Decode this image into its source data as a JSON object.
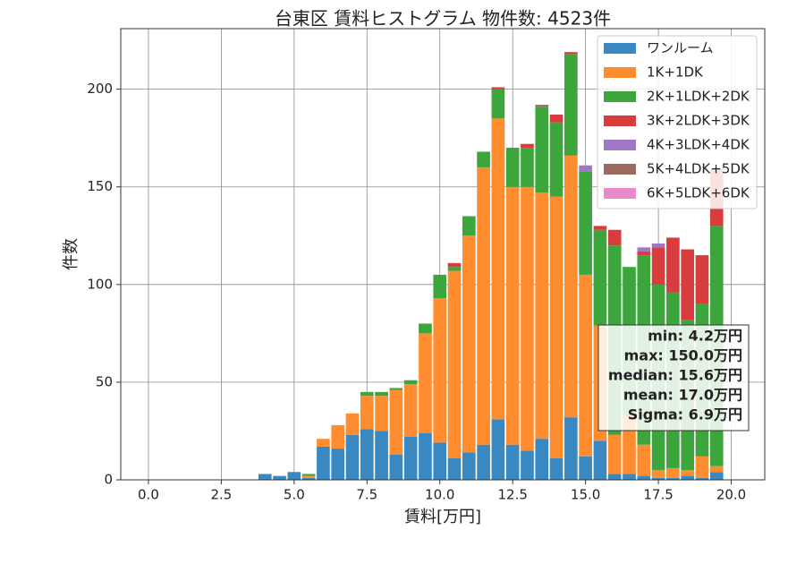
{
  "chart_data": {
    "type": "bar",
    "stacked": true,
    "title": "台東区 賃料ヒストグラム 物件数: 4523件",
    "xlabel": "賃料[万円]",
    "ylabel": "件数",
    "xlim": [
      -0.95,
      21.15
    ],
    "ylim": [
      0,
      231
    ],
    "grid": true,
    "bin_width": 0.5,
    "x": [
      3.5,
      4.0,
      4.5,
      5.0,
      5.5,
      6.0,
      6.5,
      7.0,
      7.5,
      8.0,
      8.5,
      9.0,
      9.5,
      10.0,
      10.5,
      11.0,
      11.5,
      12.0,
      12.5,
      13.0,
      13.5,
      14.0,
      14.5,
      15.0,
      15.5,
      16.0,
      16.5,
      17.0,
      17.5,
      18.0,
      18.5,
      19.0,
      19.5
    ],
    "x_ticks": [
      {
        "value": 0.0,
        "label": "0.0"
      },
      {
        "value": 2.5,
        "label": "2.5"
      },
      {
        "value": 5.0,
        "label": "5.0"
      },
      {
        "value": 7.5,
        "label": "7.5"
      },
      {
        "value": 10.0,
        "label": "10.0"
      },
      {
        "value": 12.5,
        "label": "12.5"
      },
      {
        "value": 15.0,
        "label": "15.0"
      },
      {
        "value": 17.5,
        "label": "17.5"
      },
      {
        "value": 20.0,
        "label": "20.0"
      }
    ],
    "y_ticks": [
      {
        "value": 0,
        "label": "0"
      },
      {
        "value": 50,
        "label": "50"
      },
      {
        "value": 100,
        "label": "100"
      },
      {
        "value": 150,
        "label": "150"
      },
      {
        "value": 200,
        "label": "200"
      }
    ],
    "series": [
      {
        "name": "ワンルーム",
        "color": "#3a88c1",
        "values": [
          0,
          3,
          2,
          4,
          1,
          17,
          16,
          23,
          26,
          25,
          13,
          22,
          24,
          19,
          11,
          14,
          18,
          31,
          18,
          15,
          21,
          11,
          32,
          12,
          20,
          3,
          3,
          2,
          1,
          1,
          2,
          1,
          4
        ]
      },
      {
        "name": "1K+1DK",
        "color": "#ff8c2e",
        "values": [
          0,
          0,
          0,
          0,
          1,
          4,
          12,
          11,
          17,
          18,
          33,
          27,
          51,
          74,
          96,
          111,
          142,
          154,
          132,
          135,
          126,
          134,
          134,
          93,
          59,
          20,
          30,
          16,
          4,
          5,
          3,
          11,
          3
        ]
      },
      {
        "name": "2K+1LDK+2DK",
        "color": "#3ca53c",
        "values": [
          0,
          0,
          0,
          0,
          1,
          0,
          0,
          0,
          2,
          2,
          1,
          2,
          5,
          12,
          2,
          10,
          8,
          15,
          20,
          20,
          44,
          38,
          52,
          53,
          49,
          97,
          76,
          97,
          95,
          90,
          77,
          78,
          123
        ]
      },
      {
        "name": "3K+2LDK+3DK",
        "color": "#d83c3c",
        "values": [
          0,
          0,
          0,
          0,
          0,
          0,
          0,
          0,
          0,
          0,
          0,
          0,
          0,
          0,
          2,
          0,
          0,
          1,
          0,
          2,
          0,
          4,
          1,
          0,
          2,
          8,
          0,
          2,
          19,
          28,
          36,
          25,
          29
        ]
      },
      {
        "name": "4K+3LDK+4DK",
        "color": "#a077c4",
        "values": [
          0,
          0,
          0,
          0,
          0,
          0,
          0,
          0,
          0,
          0,
          0,
          0,
          0,
          0,
          0,
          0,
          0,
          0,
          0,
          0,
          0,
          0,
          0,
          3,
          0,
          0,
          0,
          2,
          2,
          0,
          0,
          0,
          0
        ]
      },
      {
        "name": "5K+4LDK+5DK",
        "color": "#9a6a5e",
        "values": [
          0,
          0,
          0,
          0,
          0,
          0,
          0,
          0,
          0,
          0,
          0,
          0,
          0,
          0,
          0,
          0,
          0,
          0,
          0,
          0,
          1,
          0,
          0,
          0,
          0,
          0,
          0,
          0,
          0,
          0,
          0,
          0,
          0
        ]
      },
      {
        "name": "6K+5LDK+6DK",
        "color": "#e98ac9",
        "values": [
          0,
          0,
          0,
          0,
          0,
          0,
          0,
          0,
          0,
          0,
          0,
          0,
          0,
          0,
          0,
          0,
          0,
          0,
          0,
          0,
          0,
          0,
          0,
          0,
          0,
          0,
          0,
          0,
          0,
          0,
          0,
          0,
          0
        ]
      }
    ],
    "legend_position": "top-right",
    "stats": [
      "min: 4.2万円",
      "max: 150.0万円",
      "median: 15.6万円",
      "mean: 17.0万円",
      "Sigma: 6.9万円"
    ]
  }
}
